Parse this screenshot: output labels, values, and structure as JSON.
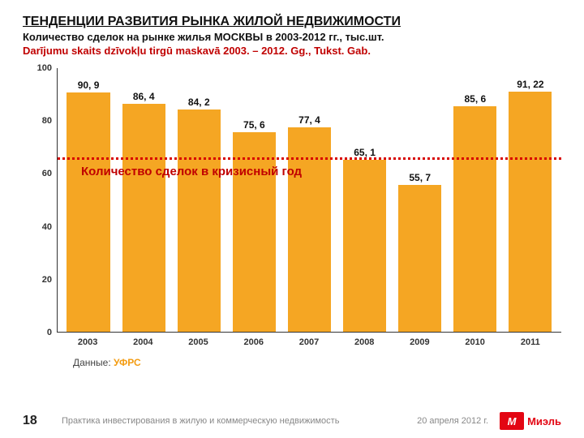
{
  "header": {
    "title": "ТЕНДЕНЦИИ РАЗВИТИЯ РЫНКА ЖИЛОЙ НЕДВИЖИМОСТИ",
    "subtitle_ru": "Количество сделок на рынке жилья МОСКВЫ в 2003-2012 гг., тыс.шт.",
    "subtitle_lv": "Darījumu skaits dzīvokļu tirgū maskavā 2003. – 2012. Gg., Tukst. Gab.",
    "title_fontsize": 16,
    "subtitle_fontsize": 13
  },
  "chart": {
    "type": "bar",
    "categories": [
      "2003",
      "2004",
      "2005",
      "2006",
      "2007",
      "2008",
      "2009",
      "2010",
      "2011"
    ],
    "values": [
      90.9,
      86.4,
      84.2,
      75.6,
      77.4,
      65.1,
      55.7,
      85.6,
      91.22
    ],
    "value_labels": [
      "90, 9",
      "86, 4",
      "84, 2",
      "75, 6",
      "77, 4",
      "65, 1",
      "55, 7",
      "85, 6",
      "91, 22"
    ],
    "bar_color": "#f5a623",
    "ylim": [
      0,
      100
    ],
    "ytick_step": 20,
    "yticks": [
      0,
      20,
      40,
      60,
      80,
      100
    ],
    "axis_color": "#333333",
    "label_fontsize": 12,
    "tick_fontsize": 11,
    "background_color": "#ffffff",
    "crisis_annotation": {
      "text": "Количество сделок в кризисный год",
      "line_value": 65.1,
      "line_color": "#d80000",
      "text_color": "#c00000",
      "text_fontsize": 15
    }
  },
  "source": {
    "label": "Данные:",
    "value": "УФРС"
  },
  "footer": {
    "page_number": "18",
    "center_text": "Практика инвестирования в жилую и коммерческую недвижимость",
    "date": "20 апреля 2012 г.",
    "logo_text": "Миэль",
    "logo_mark": "М",
    "logo_bg": "#e30613"
  }
}
